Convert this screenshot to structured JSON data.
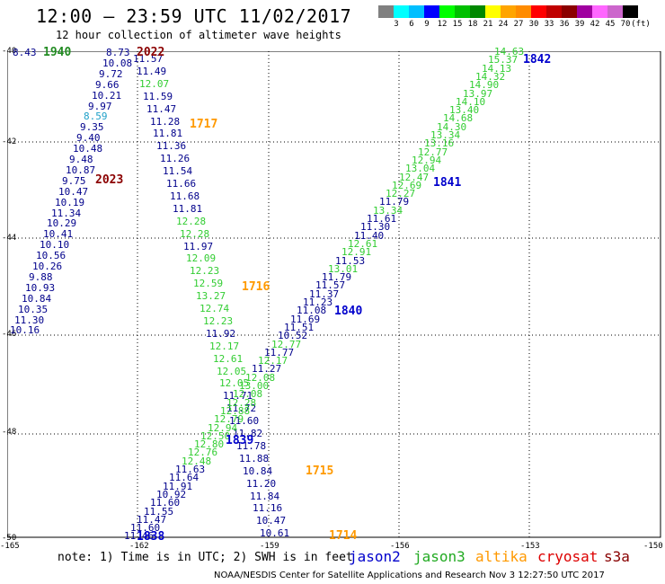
{
  "title": "12:00 — 23:59 UTC 11/02/2017",
  "subtitle": "12 hour collection of altimeter wave heights",
  "color_scale": {
    "colors": [
      "#808080",
      "#00ffff",
      "#00bfff",
      "#0000ff",
      "#00ff00",
      "#00c000",
      "#008800",
      "#ffff00",
      "#ffa500",
      "#ff8c00",
      "#ff0000",
      "#c00000",
      "#8b0000",
      "#a000a0",
      "#ff66ff",
      "#cc66cc",
      "#000000"
    ],
    "labels": [
      "3",
      "6",
      "9",
      "12",
      "15",
      "18",
      "21",
      "24",
      "27",
      "30",
      "33",
      "36",
      "39",
      "42",
      "45",
      "70",
      "(ft)"
    ]
  },
  "axes": {
    "lat_labels": [
      "-40",
      "-42",
      "-44",
      "-46",
      "-48",
      "-50"
    ],
    "lon_labels": [
      "-165",
      "-162",
      "-159",
      "-156",
      "-153",
      "-150"
    ]
  },
  "satellite_legend": [
    {
      "name": "jason2",
      "color": "#0000cc"
    },
    {
      "name": "jason3",
      "color": "#22aa22"
    },
    {
      "name": "altika",
      "color": "#ff9900"
    },
    {
      "name": "cryosat",
      "color": "#dd0000"
    },
    {
      "name": "s3a",
      "color": "#880000"
    }
  ],
  "note": "note: 1) Time is in UTC; 2) SWH is in feet",
  "credit": "NOAA/NESDIS Center for Satellite Applications and Research   Nov  3 12:27:50 UTC 2017",
  "time_labels": [
    {
      "t": "1940",
      "c": "#228b22"
    },
    {
      "t": "2022",
      "c": "#8b0000"
    },
    {
      "t": "1717",
      "c": "#ff9900"
    },
    {
      "t": "2023",
      "c": "#8b0000"
    },
    {
      "t": "1716",
      "c": "#ff9900"
    },
    {
      "t": "1842",
      "c": "#0000cc"
    },
    {
      "t": "1841",
      "c": "#0000cc"
    },
    {
      "t": "1840",
      "c": "#0000cc"
    },
    {
      "t": "1839",
      "c": "#0000cc"
    },
    {
      "t": "1838",
      "c": "#0000cc"
    },
    {
      "t": "1715",
      "c": "#ff9900"
    },
    {
      "t": "1714",
      "c": "#ff9900"
    }
  ],
  "track_2022": {
    "values": [
      "8.73",
      "10.08",
      "9.72",
      "9.66",
      "10.21",
      "9.97",
      "8.59",
      "9.35",
      "9.40",
      "10.48",
      "9.48",
      "10.87",
      "9.75",
      "10.47",
      "10.19",
      "11.34",
      "10.29",
      "10.41",
      "10.10",
      "10.56",
      "10.26",
      "9.88",
      "10.93",
      "10.84",
      "10.35",
      "11.30",
      "10.16"
    ],
    "colors": [
      "b",
      "b",
      "b",
      "b",
      "b",
      "b",
      "c",
      "b",
      "b",
      "b",
      "b",
      "b",
      "b",
      "b",
      "b",
      "b",
      "b",
      "b",
      "b",
      "b",
      "b",
      "b",
      "b",
      "b",
      "b",
      "b",
      "b"
    ]
  },
  "track_1940_top": [
    "8.43"
  ],
  "track_1717": {
    "values": [
      "11.57",
      "11.49",
      "12.07",
      "11.59",
      "11.47",
      "11.28",
      "11.81",
      "11.36",
      "11.26",
      "11.54",
      "11.66",
      "11.68",
      "11.81",
      "12.28",
      "12.28",
      "11.97",
      "12.09",
      "12.23",
      "12.59",
      "13.27",
      "12.74",
      "12.23",
      "11.92",
      "12.17",
      "12.61",
      "12.05",
      "12.05",
      "11.71",
      "11.72",
      "11.60",
      "11.82",
      "11.78",
      "11.88",
      "10.84",
      "11.20",
      "11.84",
      "11.16",
      "10.47",
      "10.61"
    ],
    "colors": [
      "b",
      "b",
      "g",
      "b",
      "b",
      "b",
      "b",
      "b",
      "b",
      "b",
      "b",
      "b",
      "b",
      "g",
      "g",
      "b",
      "g",
      "g",
      "g",
      "g",
      "g",
      "g",
      "b",
      "g",
      "g",
      "g",
      "g",
      "b",
      "b",
      "b",
      "b",
      "b",
      "b",
      "b",
      "b",
      "b",
      "b",
      "b",
      "b"
    ]
  },
  "track_1842": {
    "values": [
      "14.63",
      "15.37",
      "14.13",
      "14.32",
      "14.90",
      "13.97",
      "14.10",
      "13.40",
      "14.68",
      "14.30",
      "13.34",
      "13.16",
      "12.77",
      "12.94",
      "13.04",
      "12.47",
      "12.69",
      "12.27",
      "11.79",
      "13.34",
      "11.61",
      "11.30",
      "11.40",
      "12.61",
      "12.91",
      "11.53",
      "13.01",
      "11.79",
      "11.57",
      "11.37",
      "11.23",
      "11.08",
      "11.69",
      "11.51",
      "10.52",
      "12.77",
      "11.77",
      "12.17",
      "11.27",
      "12.08",
      "13.00",
      "12.08",
      "12.28",
      "12.88",
      "12.79",
      "12.94",
      "12.50",
      "12.80",
      "12.76",
      "12.48",
      "11.63",
      "11.64",
      "11.91",
      "10.92",
      "11.60",
      "11.55",
      "11.47",
      "11.60",
      "11.46"
    ],
    "colors": [
      "g",
      "g",
      "g",
      "g",
      "g",
      "g",
      "g",
      "g",
      "g",
      "g",
      "g",
      "g",
      "g",
      "g",
      "g",
      "g",
      "g",
      "g",
      "b",
      "g",
      "b",
      "b",
      "b",
      "g",
      "g",
      "b",
      "g",
      "b",
      "b",
      "b",
      "b",
      "b",
      "b",
      "b",
      "b",
      "g",
      "b",
      "g",
      "b",
      "g",
      "g",
      "g",
      "g",
      "g",
      "g",
      "g",
      "g",
      "g",
      "g",
      "g",
      "b",
      "b",
      "b",
      "b",
      "b",
      "b",
      "b",
      "b",
      "b"
    ]
  }
}
